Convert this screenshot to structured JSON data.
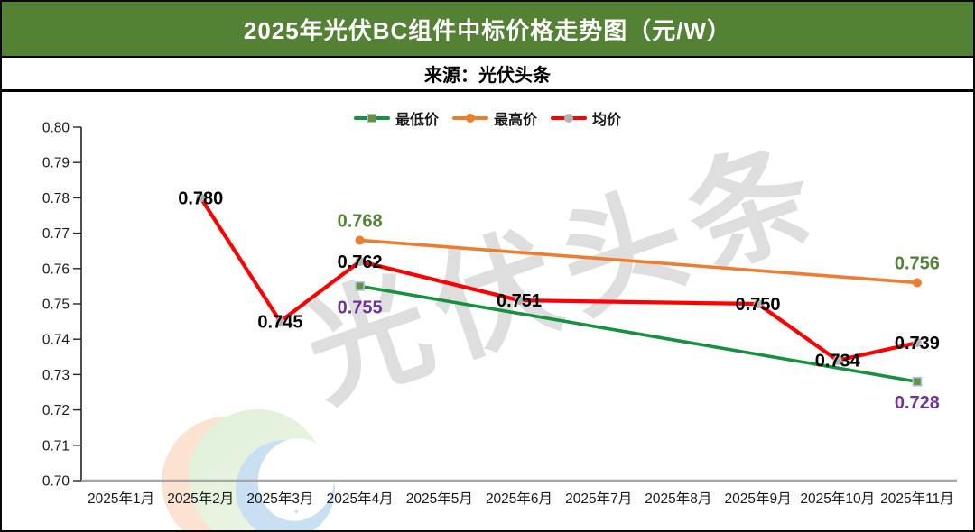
{
  "header": {
    "title": "2025年光伏BC组件中标价格走势图（元/W）",
    "bg_color": "#548235",
    "source": "来源：光伏头条"
  },
  "watermark": {
    "text": "光伏头条",
    "text_color": "#d9d9d9",
    "logo_colors": {
      "orange": "#fbe2d1",
      "green": "#e2f0dc",
      "blue": "#c9dff2",
      "white": "#ffffff"
    }
  },
  "chart_data": {
    "type": "line",
    "title": "2025年光伏BC组件中标价格走势图（元/W）",
    "source": "来源：光伏头条",
    "categories": [
      "2025年1月",
      "2025年2月",
      "2025年3月",
      "2025年4月",
      "2025年5月",
      "2025年6月",
      "2025年7月",
      "2025年8月",
      "2025年9月",
      "2025年10月",
      "2025年11月"
    ],
    "xlabel": "",
    "ylabel": "",
    "ylim": [
      0.7,
      0.8
    ],
    "y_ticks": [
      "0.80",
      "0.79",
      "0.78",
      "0.77",
      "0.76",
      "0.75",
      "0.74",
      "0.73",
      "0.72",
      "0.71",
      "0.70"
    ],
    "grid": false,
    "legend_position": "top-center",
    "axis": {
      "y_color": "#262626",
      "x_color": "#a6a6a6"
    },
    "series": [
      {
        "name": "最低价",
        "line_color": "#15913f",
        "width": 3.6,
        "marker": "square",
        "marker_fill": "#6e8f3a",
        "marker_stroke": "#9dc3e6",
        "label_color": "#7030A0",
        "label_pos": "below",
        "values": [
          null,
          null,
          null,
          0.755,
          null,
          null,
          null,
          null,
          null,
          null,
          0.728
        ],
        "labels": [
          "",
          "",
          "",
          "0.755",
          "",
          "",
          "",
          "",
          "",
          "",
          "0.728"
        ]
      },
      {
        "name": "最高价",
        "line_color": "#ED7D31",
        "width": 3.6,
        "marker": "circle",
        "marker_fill": "#ED7D31",
        "marker_stroke": "",
        "label_color": "#538135",
        "label_pos": "above",
        "values": [
          null,
          null,
          null,
          0.768,
          null,
          null,
          null,
          null,
          null,
          null,
          0.756
        ],
        "labels": [
          "",
          "",
          "",
          "0.768",
          "",
          "",
          "",
          "",
          "",
          "",
          "0.756"
        ]
      },
      {
        "name": "均价",
        "line_color": "#FF0000",
        "width": 4.2,
        "marker": "circle",
        "marker_fill": "#b3b3b3",
        "marker_stroke": "",
        "label_color": "#000000",
        "label_pos": "center",
        "values": [
          null,
          0.78,
          0.745,
          0.762,
          null,
          0.751,
          null,
          null,
          0.75,
          0.734,
          0.739
        ],
        "labels": [
          "",
          "0.780",
          "0.745",
          "0.762",
          "",
          "0.751",
          "",
          "",
          "0.750",
          "0.734",
          "0.739"
        ]
      }
    ]
  }
}
